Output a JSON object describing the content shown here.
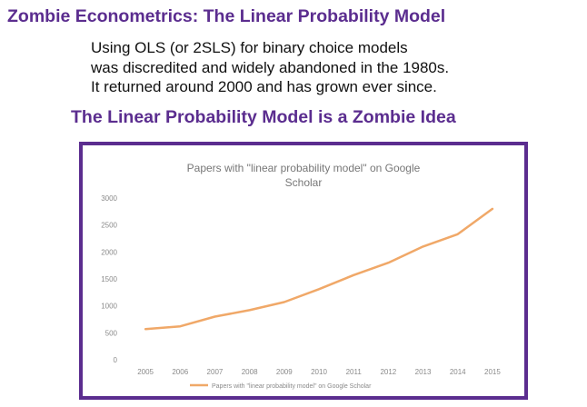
{
  "slide": {
    "title": "Zombie Econometrics: The Linear Probability Model",
    "intro_lines": [
      "Using OLS (or 2SLS) for binary choice models",
      "was discredited and widely abandoned in the 1980s.",
      "It returned around 2000 and has grown ever since."
    ],
    "subtitle": "The Linear Probability Model is a Zombie Idea",
    "accent_color": "#5b2d8f"
  },
  "chart_data": {
    "type": "line",
    "title_lines": [
      "Papers with \"linear probability model\" on Google",
      "Scholar"
    ],
    "categories": [
      "2005",
      "2006",
      "2007",
      "2008",
      "2009",
      "2010",
      "2011",
      "2012",
      "2013",
      "2014",
      "2015"
    ],
    "series": [
      {
        "name": "Papers with \"linear probability model\" on Google Scholar",
        "color": "#f0a868",
        "values": [
          570,
          620,
          800,
          920,
          1070,
          1310,
          1570,
          1800,
          2100,
          2330,
          2800
        ]
      }
    ],
    "ylim": [
      0,
      3000
    ],
    "yticks": [
      0,
      500,
      1000,
      1500,
      2000,
      2500,
      3000
    ],
    "grid": false,
    "legend": "bottom"
  }
}
